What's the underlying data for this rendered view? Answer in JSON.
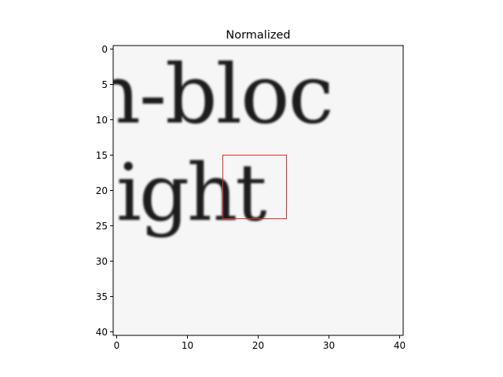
{
  "chart_data": {
    "type": "heatmap",
    "title": "Normalized",
    "xlim": [
      -0.5,
      40.5
    ],
    "ylim": [
      40.5,
      -0.5
    ],
    "x_ticks": [
      0,
      10,
      20,
      30,
      40
    ],
    "y_ticks": [
      0,
      5,
      10,
      15,
      20,
      25,
      30,
      35,
      40
    ],
    "x_tick_labels": [
      "0",
      "10",
      "20",
      "30",
      "40"
    ],
    "y_tick_labels": [
      "0",
      "5",
      "10",
      "15",
      "20",
      "25",
      "30",
      "35",
      "40"
    ],
    "colormap": "gray",
    "image_size": [
      41,
      41
    ],
    "highlight_box": {
      "x0": 15,
      "y0": 15,
      "x1": 24,
      "y1": 24,
      "color": "#e8252b"
    },
    "image_text_lines": [
      {
        "text": "n-bloc",
        "y_center": 8.5
      },
      {
        "text": "ight",
        "y_center": 20.5
      }
    ]
  }
}
